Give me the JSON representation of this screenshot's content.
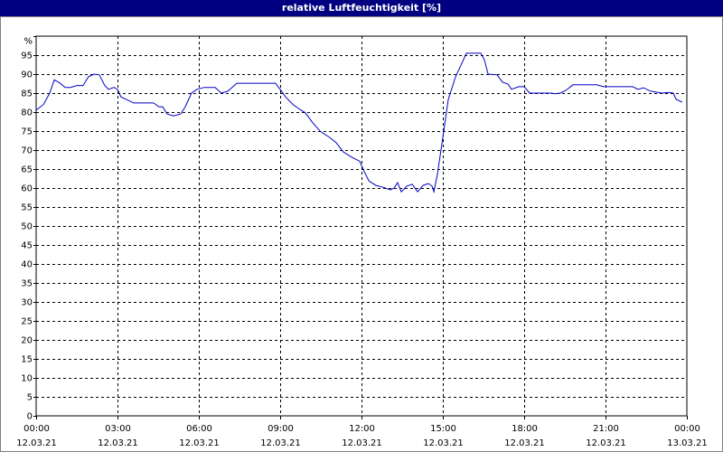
{
  "chart_data": {
    "type": "line",
    "title": "relative Luftfeuchtigkeit [%]",
    "x": [
      0,
      0.27,
      0.5,
      0.67,
      0.87,
      1.07,
      1.27,
      1.5,
      1.73,
      1.93,
      2.13,
      2.33,
      2.53,
      2.67,
      2.87,
      3,
      3.13,
      3.33,
      3.6,
      4.33,
      4.53,
      4.67,
      4.83,
      5.07,
      5.33,
      5.5,
      5.73,
      5.93,
      6.2,
      6.6,
      6.83,
      7.07,
      7.4,
      8,
      8.83,
      9,
      9.2,
      9.47,
      9.73,
      9.93,
      10.2,
      10.5,
      10.83,
      11.07,
      11.33,
      11.67,
      11.93,
      12.07,
      12.27,
      12.53,
      12.8,
      13.07,
      13.2,
      13.33,
      13.47,
      13.67,
      13.87,
      14.07,
      14.27,
      14.47,
      14.6,
      14.67,
      14.8,
      15,
      15.2,
      15.47,
      15.73,
      15.87,
      16.4,
      16.53,
      16.67,
      17,
      17.2,
      17.4,
      17.53,
      17.8,
      18,
      18.2,
      19,
      19.13,
      19.33,
      19.53,
      19.8,
      20.67,
      20.93,
      22,
      22.2,
      22.4,
      22.67,
      23.07,
      23.33,
      23.5,
      23.6,
      23.83
    ],
    "series": [
      {
        "color": "#0000c8",
        "values": [
          80.5,
          82,
          85,
          88.5,
          87.7,
          86.5,
          86.5,
          87,
          87,
          89.3,
          90,
          89.8,
          87,
          86,
          86.5,
          86,
          84,
          83.3,
          82.4,
          82.4,
          81.4,
          81.4,
          79.5,
          79,
          79.5,
          81.4,
          85,
          86,
          86.5,
          86.5,
          85,
          85.5,
          87.6,
          87.6,
          87.6,
          86,
          84,
          82,
          80.7,
          79.8,
          77.2,
          74.8,
          73.3,
          71.9,
          69.5,
          68,
          67.1,
          64.8,
          61.9,
          60.7,
          60.2,
          59.5,
          60,
          61.4,
          59,
          60.5,
          61,
          59,
          60.7,
          61.2,
          60.5,
          59,
          63.6,
          73.3,
          83.3,
          89.3,
          93.3,
          95.5,
          95.5,
          93.8,
          90,
          89.8,
          87.9,
          87.4,
          86,
          86.7,
          86.7,
          85,
          85,
          84.8,
          85,
          85.7,
          87.2,
          87.2,
          86.7,
          86.7,
          86,
          86.4,
          85.5,
          85,
          85.2,
          85,
          83.4,
          82.6
        ]
      }
    ],
    "xlim": [
      0,
      24
    ],
    "xticks": [
      {
        "value": 0,
        "label": "00:00"
      },
      {
        "value": 3,
        "label": "03:00"
      },
      {
        "value": 6,
        "label": "06:00"
      },
      {
        "value": 9,
        "label": "09:00"
      },
      {
        "value": 12,
        "label": "12:00"
      },
      {
        "value": 15,
        "label": "15:00"
      },
      {
        "value": 18,
        "label": "18:00"
      },
      {
        "value": 21,
        "label": "21:00"
      },
      {
        "value": 24,
        "label": "00:00"
      }
    ],
    "xtick_dates": [
      "12.03.21",
      "12.03.21",
      "12.03.21",
      "12.03.21",
      "12.03.21",
      "12.03.21",
      "12.03.21",
      "12.03.21",
      "13.03.21"
    ],
    "ylim": [
      0,
      100
    ],
    "yticks": [
      0,
      5,
      10,
      15,
      20,
      25,
      30,
      35,
      40,
      45,
      50,
      55,
      60,
      65,
      70,
      75,
      80,
      85,
      90,
      95,
      {
        "value": 100,
        "label": "%"
      }
    ],
    "grid": true
  }
}
